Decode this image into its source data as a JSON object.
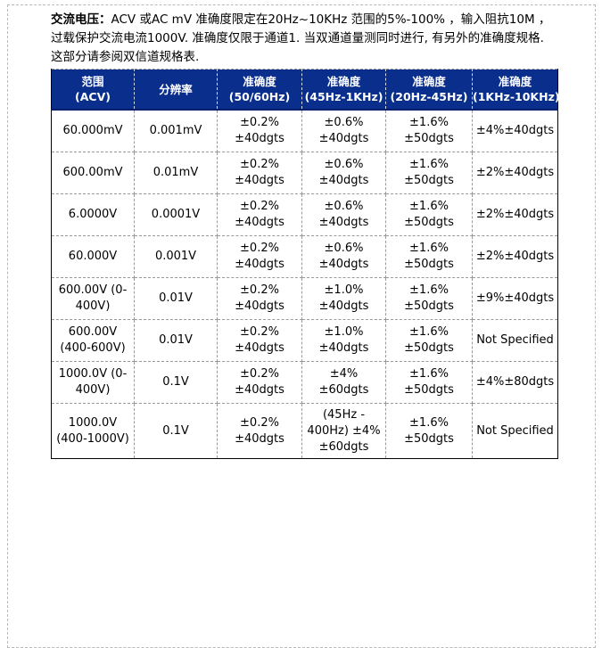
{
  "intro": {
    "label": "交流电压：",
    "text": "ACV 或AC mV 准确度限定在20Hz~10KHz 范围的5%-100% ，输入阻抗10M ，过载保护交流电流1000V. 准确度仅限于通道1. 当双通道量测同时进行, 有另外的准确度规格. 这部分请参阅双信道规格表."
  },
  "table": {
    "headers": [
      "范围\n(ACV)",
      "分辨率",
      "准确度\n(50/60Hz)",
      "准确度\n(45Hz-1KHz)",
      "准确度\n(20Hz-45Hz)",
      "准确度\n(1KHz-10KHz)"
    ],
    "rows": [
      [
        "60.000mV",
        "0.001mV",
        "±0.2% ±40dgts",
        "±0.6% ±40dgts",
        "±1.6% ±50dgts",
        "±4%±40dgts"
      ],
      [
        "600.00mV",
        "0.01mV",
        "±0.2% ±40dgts",
        "±0.6% ±40dgts",
        "±1.6% ±50dgts",
        "±2%±40dgts"
      ],
      [
        "6.0000V",
        "0.0001V",
        "±0.2% ±40dgts",
        "±0.6% ±40dgts",
        "±1.6% ±50dgts",
        "±2%±40dgts"
      ],
      [
        "60.000V",
        "0.001V",
        "±0.2% ±40dgts",
        "±0.6% ±40dgts",
        "±1.6% ±50dgts",
        "±2%±40dgts"
      ],
      [
        "600.00V (0-400V)",
        "0.01V",
        "±0.2% ±40dgts",
        "±1.0% ±40dgts",
        "±1.6% ±50dgts",
        "±9%±40dgts"
      ],
      [
        "600.00V (400-600V)",
        "0.01V",
        "±0.2% ±40dgts",
        "±1.0% ±40dgts",
        "±1.6% ±50dgts",
        "Not Specified"
      ],
      [
        "1000.0V (0-400V)",
        "0.1V",
        "±0.2% ±40dgts",
        "±4%±60dgts",
        "±1.6% ±50dgts",
        "±4%±80dgts"
      ],
      [
        "1000.0V (400-1000V)",
        "0.1V",
        "±0.2% ±40dgts",
        "(45Hz - 400Hz) ±4% ±60dgts",
        "±1.6% ±50dgts",
        "Not Specified"
      ]
    ]
  },
  "colors": {
    "header_bg": "#0a2e8c",
    "header_text": "#ffffff",
    "cell_border": "#9a9a9a",
    "header_divider": "#d6dbe9",
    "table_outline": "#000000",
    "page_border": "#b9b9b9",
    "text": "#000000"
  }
}
